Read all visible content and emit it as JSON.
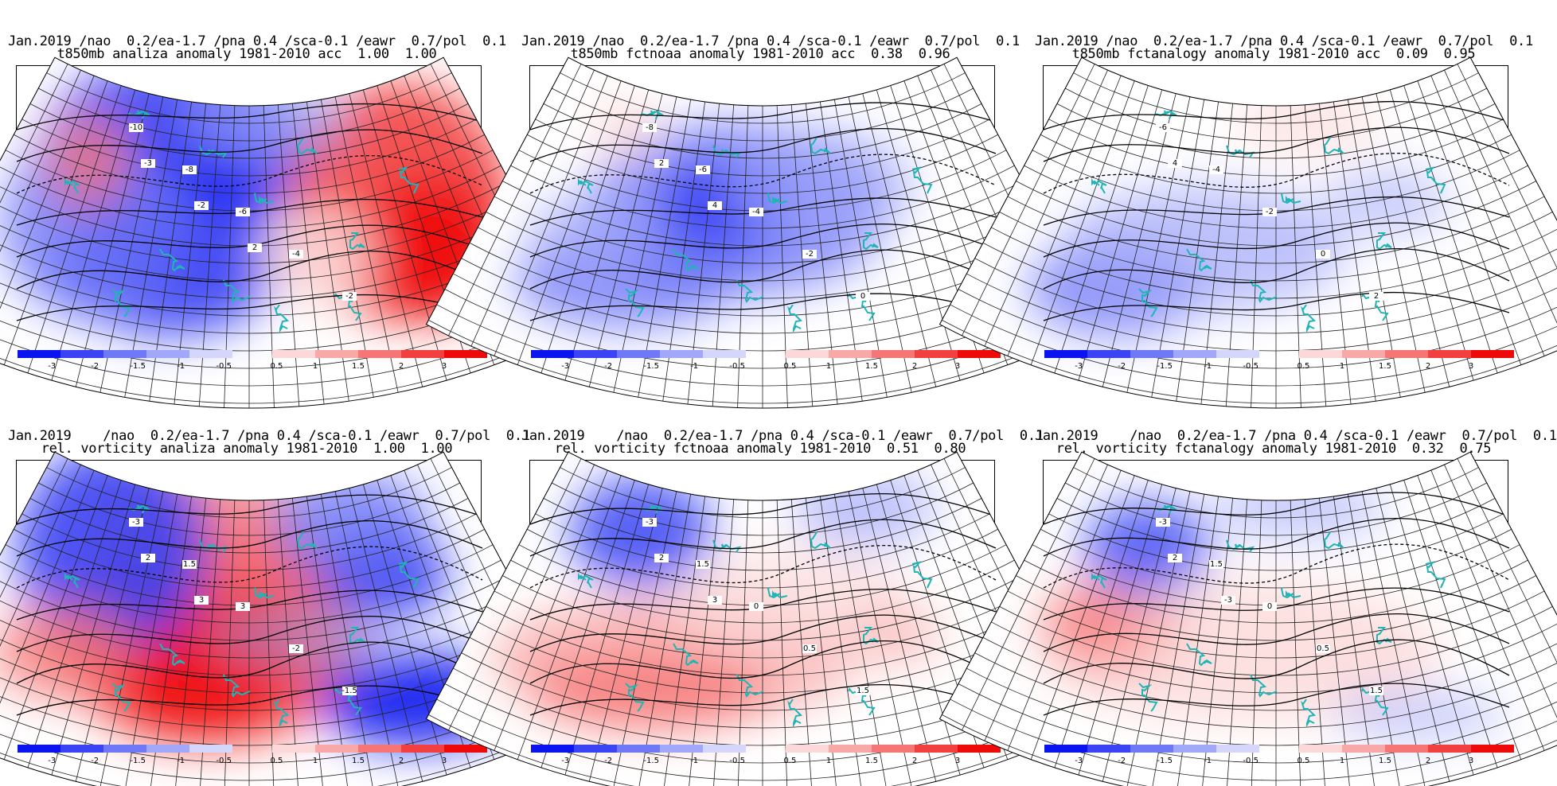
{
  "colorbar": {
    "ticks": [
      "-3",
      "-2",
      "-1.5",
      "-1",
      "-0.5",
      "0.5",
      "1",
      "1.5",
      "2",
      "3"
    ],
    "colors_neg": [
      "#0a14f0",
      "#3a44f4",
      "#6f78f7",
      "#a2a8f9",
      "#d4d6fc"
    ],
    "colors_pos": [
      "#fcd8d8",
      "#f9a8a8",
      "#f67676",
      "#f24040",
      "#ef0a0a"
    ]
  },
  "panels": [
    {
      "title_line1": "Jan.2019 /nao  0.2/ea-1.7 /pna 0.4 /sca-0.1 /eawr  0.7/pol  0.1",
      "title_line2": "t850mb analiza anomaly 1981-2010 acc  1.00  1.00",
      "contour_labels": [
        "-10",
        "-8",
        "-6",
        "-4",
        "-2",
        "-3",
        "-2",
        "2"
      ],
      "anomaly_field": "strong-negative-north-positive-east"
    },
    {
      "title_line1": "Jan.2019 /nao  0.2/ea-1.7 /pna 0.4 /sca-0.1 /eawr  0.7/pol  0.1",
      "title_line2": "t850mb fctnoaa anomaly 1981-2010 acc  0.38  0.96",
      "contour_labels": [
        "-8",
        "-6",
        "-4",
        "-2",
        "0",
        "2",
        "4"
      ],
      "anomaly_field": "moderate-negative-center"
    },
    {
      "title_line1": "Jan.2019 /nao  0.2/ea-1.7 /pna 0.4 /sca-0.1 /eawr  0.7/pol  0.1",
      "title_line2": "t850mb fctanalogy anomaly 1981-2010 acc  0.09  0.95",
      "contour_labels": [
        "-6",
        "-4",
        "-2",
        "0",
        "2",
        "4"
      ],
      "anomaly_field": "weak-negative-west"
    },
    {
      "title_line1": "Jan.2019    /nao  0.2/ea-1.7 /pna 0.4 /sca-0.1 /eawr  0.7/pol  0.1",
      "title_line2": "rel. vorticity analiza anomaly 1981-2010  1.00  1.00",
      "contour_labels": [
        "-3",
        "1.5",
        "3",
        "-2",
        "-1.5",
        "2",
        "3"
      ],
      "anomaly_field": "strong-positive-center"
    },
    {
      "title_line1": "Jan.2019    /nao  0.2/ea-1.7 /pna 0.4 /sca-0.1 /eawr  0.7/pol  0.1",
      "title_line2": "rel. vorticity fctnoaa anomaly 1981-2010  0.51  0.80",
      "contour_labels": [
        "-3",
        "1.5",
        "0",
        "0.5",
        "1.5",
        "2",
        "3"
      ],
      "anomaly_field": "moderate-positive-south"
    },
    {
      "title_line1": "Jan.2019    /nao  0.2/ea-1.7 /pna 0.4 /sca-0.1 /eawr  0.7/pol  0.1",
      "title_line2": "rel. vorticity fctanalogy anomaly 1981-2010  0.32  0.75",
      "contour_labels": [
        "-3",
        "1.5",
        "0",
        "0.5",
        "1.5",
        "2",
        "-3"
      ],
      "anomaly_field": "weak-positive-south"
    }
  ]
}
